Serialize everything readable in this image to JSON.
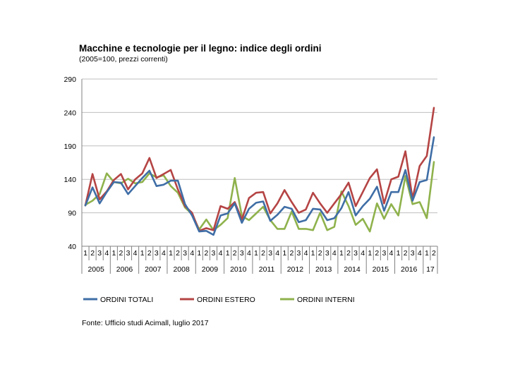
{
  "title": "Macchine e tecnologie per il legno: indice degli ordini",
  "subtitle": "(2005=100, prezzi correnti)",
  "source": "Fonte: Ufficio studi Acimall, luglio 2017",
  "chart_data": {
    "type": "line",
    "title": "Macchine e tecnologie per il legno: indice degli ordini",
    "subtitle": "(2005=100, prezzi correnti)",
    "ylim": [
      40,
      290
    ],
    "yticks": [
      40,
      90,
      140,
      190,
      240,
      290
    ],
    "grid": true,
    "legend": "bottom",
    "quarter_labels": [
      "1",
      "2",
      "3",
      "4",
      "1",
      "2",
      "3",
      "4",
      "1",
      "2",
      "3",
      "4",
      "1",
      "2",
      "3",
      "4",
      "1",
      "2",
      "3",
      "4",
      "1",
      "2",
      "3",
      "4",
      "1",
      "2",
      "3",
      "4",
      "1",
      "2",
      "3",
      "4",
      "1",
      "2",
      "3",
      "4",
      "1",
      "2",
      "3",
      "4",
      "1",
      "2",
      "3",
      "4",
      "1",
      "2",
      "3",
      "4",
      "1",
      "2"
    ],
    "years": [
      {
        "label": "2005",
        "quarters": 4
      },
      {
        "label": "2006",
        "quarters": 4
      },
      {
        "label": "2007",
        "quarters": 4
      },
      {
        "label": "2008",
        "quarters": 4
      },
      {
        "label": "2009",
        "quarters": 4
      },
      {
        "label": "2010",
        "quarters": 4
      },
      {
        "label": "2011",
        "quarters": 4
      },
      {
        "label": "2012",
        "quarters": 4
      },
      {
        "label": "2013",
        "quarters": 4
      },
      {
        "label": "2014",
        "quarters": 4
      },
      {
        "label": "2015",
        "quarters": 4
      },
      {
        "label": "2016",
        "quarters": 4
      },
      {
        "label": "17",
        "quarters": 2
      }
    ],
    "series": [
      {
        "name": "ORDINI TOTALI",
        "color": "#3f6ea6",
        "values": [
          101,
          128,
          104,
          121,
          136,
          135,
          118,
          130,
          142,
          153,
          130,
          132,
          138,
          138,
          103,
          86,
          62,
          63,
          57,
          86,
          89,
          104,
          75,
          96,
          105,
          107,
          78,
          87,
          99,
          96,
          76,
          79,
          96,
          95,
          79,
          82,
          97,
          121,
          86,
          100,
          111,
          129,
          93,
          121,
          121,
          154,
          108,
          136,
          139,
          203
        ]
      },
      {
        "name": "ORDINI ESTERO",
        "color": "#b54444",
        "values": [
          101,
          148,
          110,
          122,
          139,
          148,
          125,
          140,
          149,
          172,
          142,
          148,
          154,
          125,
          100,
          90,
          63,
          67,
          64,
          100,
          96,
          106,
          80,
          112,
          120,
          121,
          89,
          104,
          124,
          106,
          90,
          95,
          120,
          104,
          90,
          104,
          118,
          135,
          100,
          121,
          142,
          155,
          104,
          140,
          144,
          182,
          111,
          160,
          175,
          247
        ]
      },
      {
        "name": "ORDINI INTERNI",
        "color": "#8fb24c",
        "values": [
          102,
          108,
          118,
          149,
          136,
          134,
          141,
          134,
          136,
          149,
          143,
          146,
          130,
          120,
          98,
          88,
          65,
          80,
          64,
          72,
          82,
          142,
          85,
          79,
          89,
          99,
          79,
          66,
          66,
          92,
          66,
          66,
          64,
          90,
          64,
          69,
          122,
          100,
          72,
          81,
          62,
          104,
          81,
          103,
          86,
          145,
          103,
          106,
          82,
          166
        ]
      }
    ]
  }
}
